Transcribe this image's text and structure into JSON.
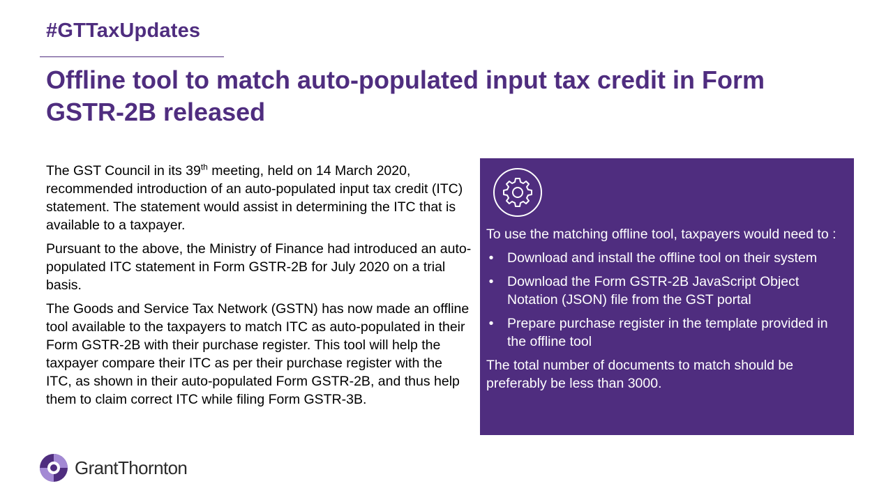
{
  "header": {
    "hashtag": "#GTTaxUpdates",
    "title": "Offline tool to match auto-populated input tax credit in Form GSTR-2B released"
  },
  "left_column": {
    "p1_before_sup": "The GST Council in its 39",
    "p1_sup": "th",
    "p1_after_sup": " meeting, held on 14 March 2020, recommended introduction of an auto-populated input tax credit (ITC) statement. The statement would assist in determining the ITC that is available to a taxpayer.",
    "p2": "Pursuant to the above, the Ministry of Finance had introduced an auto-populated ITC statement in Form GSTR-2B for July 2020 on a trial basis.",
    "p3": "The Goods and Service Tax Network (GSTN) has now made an offline tool available to the taxpayers to match ITC as auto-populated in their Form GSTR-2B with their purchase register. This tool will help the taxpayer compare their ITC as per their purchase register with the ITC, as shown in their auto-populated Form GSTR-2B, and thus help them to claim correct ITC while filing Form GSTR-3B."
  },
  "panel": {
    "icon": "gear-icon",
    "intro": "To use the matching offline tool, taxpayers would need to :",
    "bullet_char": "•",
    "items": [
      "Download and install the offline tool on their system",
      "Download the Form GSTR-2B JavaScript Object Notation (JSON) file from the GST portal",
      "Prepare purchase register in the template provided in the offline tool"
    ],
    "closing": "The total number of documents to match should be preferably be less than 3000."
  },
  "footer": {
    "logo_text": "GrantThornton"
  },
  "colors": {
    "brand_purple": "#4f2d7f",
    "logo_light_purple": "#a389d4"
  }
}
